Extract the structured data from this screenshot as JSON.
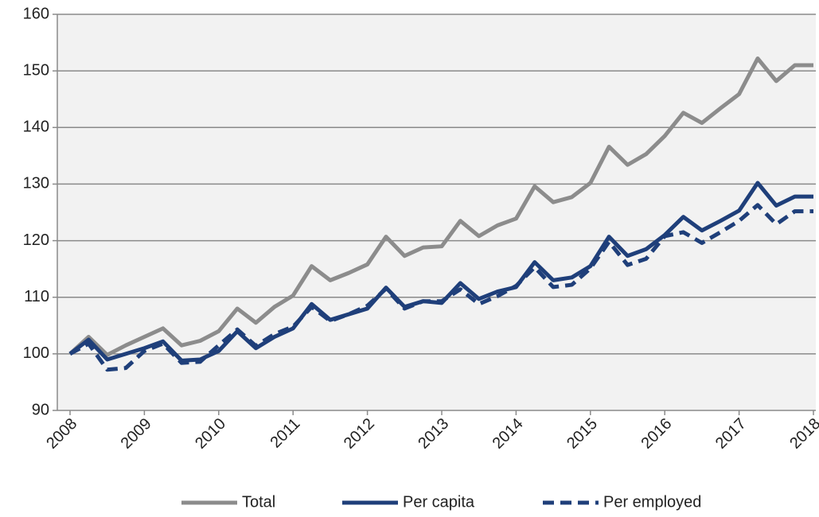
{
  "chart_data": {
    "type": "line",
    "categories": [
      "2008",
      null,
      null,
      null,
      "2009",
      null,
      null,
      null,
      "2010",
      null,
      null,
      null,
      "2011",
      null,
      null,
      null,
      "2012",
      null,
      null,
      null,
      "2013",
      null,
      null,
      null,
      "2014",
      null,
      null,
      null,
      "2015",
      null,
      null,
      null,
      "2016",
      null,
      null,
      null,
      "2017",
      null,
      null,
      null,
      "2018"
    ],
    "series": [
      {
        "name": "Total",
        "color": "#8c8c8c",
        "dash": false,
        "values": [
          100,
          103,
          99.8,
          101.5,
          103,
          104.5,
          101.5,
          102.3,
          104,
          108,
          105.5,
          108.3,
          110.3,
          115.5,
          113,
          114.3,
          115.8,
          120.7,
          117.3,
          118.8,
          119,
          123.5,
          120.8,
          122.7,
          123.9,
          129.6,
          126.8,
          127.7,
          130.2,
          136.6,
          133.4,
          135.3,
          138.5,
          142.6,
          140.8,
          143.4,
          145.9,
          152.2,
          148.2,
          151,
          151
        ]
      },
      {
        "name": "Per capita",
        "color": "#1f3f7a",
        "dash": false,
        "values": [
          100,
          102.5,
          99,
          100,
          101,
          102.2,
          98.8,
          99,
          100.5,
          104,
          101,
          103,
          104.5,
          108.8,
          106,
          107,
          108,
          111.7,
          108.3,
          109.3,
          109,
          112.5,
          109.7,
          111,
          111.8,
          116.2,
          113,
          113.5,
          115.5,
          120.7,
          117.3,
          118.5,
          121,
          124.2,
          121.8,
          123.5,
          125.3,
          130.2,
          126.2,
          127.8,
          127.8
        ]
      },
      {
        "name": "Per employed",
        "color": "#1f3f7a",
        "dash": true,
        "values": [
          100,
          101.8,
          97.2,
          97.5,
          100.5,
          101.8,
          98.4,
          98.6,
          101.5,
          104.3,
          101.4,
          103.5,
          104.8,
          108.3,
          105.8,
          107,
          108.5,
          111.5,
          108,
          109.3,
          109.3,
          111.4,
          108.8,
          110.2,
          112,
          115.3,
          111.8,
          112.2,
          115.1,
          119.8,
          115.7,
          116.8,
          120.8,
          121.5,
          119.6,
          121.5,
          123.5,
          126.3,
          122.9,
          125.2,
          125.2
        ]
      }
    ],
    "ylim": [
      90,
      160
    ],
    "yticks": [
      90,
      100,
      110,
      120,
      130,
      140,
      150,
      160
    ],
    "grid": true,
    "legend": "bottom"
  }
}
